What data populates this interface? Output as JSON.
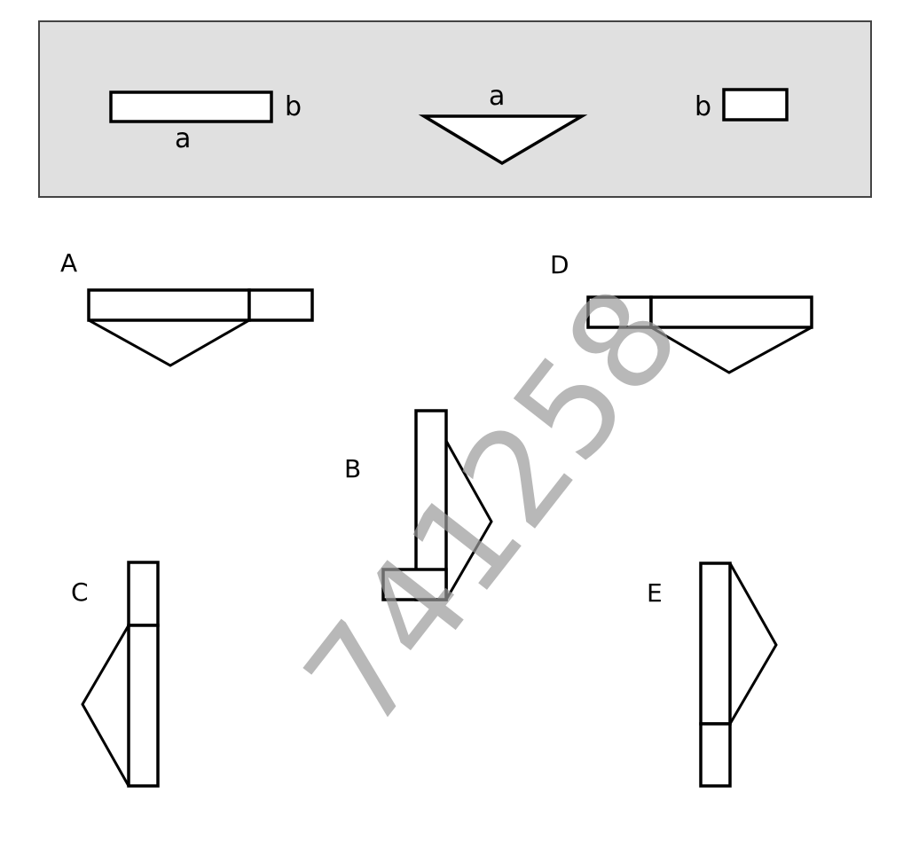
{
  "given": {
    "panel_fill": "#e0e0e0",
    "piece1_labels": {
      "long_side": "a",
      "short_side": "b"
    },
    "piece2_labels": {
      "top_side": "a"
    },
    "piece3_labels": {
      "side": "b"
    }
  },
  "options": {
    "A": {
      "label": "A"
    },
    "B": {
      "label": "B"
    },
    "C": {
      "label": "C"
    },
    "D": {
      "label": "D"
    },
    "E": {
      "label": "E"
    }
  },
  "watermark": {
    "text": "741258",
    "color": "#9a9a9a"
  }
}
